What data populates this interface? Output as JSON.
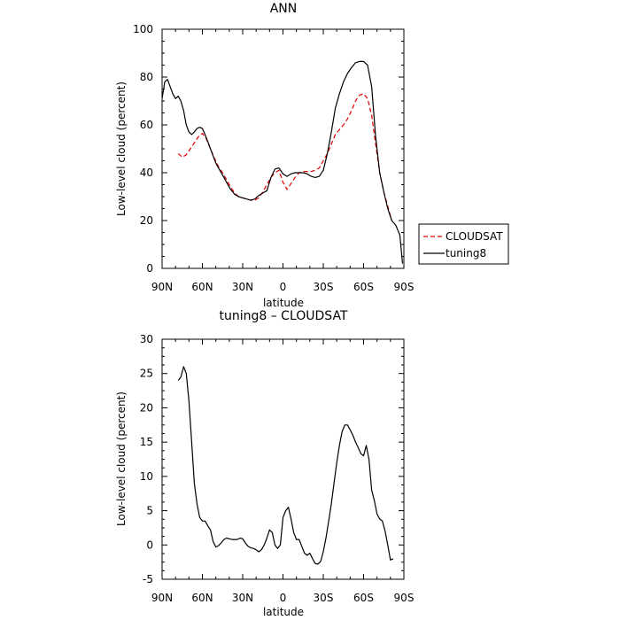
{
  "chart_data": [
    {
      "type": "line",
      "title": "ANN",
      "xlabel": "latitude",
      "ylabel": "Low-level cloud (percent)",
      "xlim": [
        90,
        -90
      ],
      "ylim": [
        0,
        100
      ],
      "xticks": [
        90,
        60,
        30,
        0,
        -30,
        -60,
        -90
      ],
      "xticklabels": [
        "90N",
        "60N",
        "30N",
        "0",
        "30S",
        "60S",
        "90S"
      ],
      "yticks": [
        0,
        20,
        40,
        60,
        80,
        100
      ],
      "yticklabels": [
        "0",
        "20",
        "40",
        "60",
        "80",
        "100"
      ],
      "legend": {
        "placement": "right",
        "entries": [
          "CLOUDSAT",
          "tuning8"
        ]
      },
      "series": [
        {
          "name": "CLOUDSAT",
          "color": "#e00000",
          "dash": "dashed",
          "x": [
            78,
            75,
            72,
            69,
            66,
            63,
            60,
            57,
            54,
            51,
            48,
            45,
            42,
            39,
            36,
            33,
            30,
            27,
            24,
            21,
            18,
            15,
            12,
            9,
            6,
            3,
            0,
            -3,
            -6,
            -9,
            -12,
            -15,
            -18,
            -21,
            -24,
            -27,
            -30,
            -33,
            -36,
            -39,
            -42,
            -45,
            -48,
            -51,
            -54,
            -57,
            -60,
            -63,
            -66,
            -69,
            -72,
            -75,
            -78,
            -81
          ],
          "y": [
            48,
            46.5,
            47.5,
            50,
            52.5,
            55,
            56.5,
            54,
            50,
            46,
            42.5,
            40,
            37,
            34,
            31.5,
            30,
            29.5,
            29,
            28.5,
            28.5,
            29.5,
            32,
            35,
            38,
            40,
            41,
            36,
            33,
            35.5,
            38,
            40,
            40.5,
            40.5,
            40.5,
            41,
            42,
            45,
            48,
            52,
            56,
            58,
            60,
            62.5,
            66,
            70,
            72.5,
            73,
            71,
            64,
            52,
            40,
            32,
            26,
            20
          ]
        },
        {
          "name": "tuning8",
          "color": "#000000",
          "dash": "solid",
          "x": [
            90,
            88,
            86,
            84,
            82,
            80,
            78,
            76,
            74,
            72,
            70,
            68,
            66,
            64,
            62,
            60,
            58,
            56,
            54,
            52,
            50,
            48,
            46,
            44,
            42,
            39,
            36,
            33,
            30,
            27,
            24,
            21,
            18,
            15,
            12,
            9,
            6,
            3,
            0,
            -3,
            -6,
            -9,
            -12,
            -15,
            -18,
            -21,
            -24,
            -27,
            -30,
            -33,
            -36,
            -39,
            -42,
            -45,
            -48,
            -51,
            -54,
            -57,
            -60,
            -63,
            -66,
            -69,
            -72,
            -75,
            -78,
            -81,
            -84,
            -87,
            -89
          ],
          "y": [
            71,
            78,
            79,
            76,
            73,
            71,
            72,
            70,
            66,
            60,
            57,
            56,
            57,
            58.5,
            59,
            58.5,
            56,
            53,
            50,
            47,
            44,
            42,
            40,
            38,
            36,
            33,
            31,
            30,
            29.5,
            29,
            28.5,
            29,
            30.5,
            31.5,
            32.5,
            38,
            41.5,
            42,
            39.5,
            38.5,
            39.5,
            40,
            40,
            40,
            39.5,
            38.5,
            38,
            38.5,
            41,
            48,
            57,
            67,
            73,
            78,
            81.5,
            84,
            86,
            86.5,
            86.5,
            85,
            76,
            55,
            40,
            32,
            25,
            20,
            18,
            14,
            2
          ]
        }
      ]
    },
    {
      "type": "line",
      "title": "tuning8 – CLOUDSAT",
      "xlabel": "latitude",
      "ylabel": "Low-level cloud (percent)",
      "xlim": [
        90,
        -90
      ],
      "ylim": [
        -5,
        30
      ],
      "xticks": [
        90,
        60,
        30,
        0,
        -30,
        -60,
        -90
      ],
      "xticklabels": [
        "90N",
        "60N",
        "30N",
        "0",
        "30S",
        "60S",
        "90S"
      ],
      "yticks": [
        -5,
        0,
        5,
        10,
        15,
        20,
        25,
        30
      ],
      "yticklabels": [
        "-5",
        "0",
        "5",
        "10",
        "15",
        "20",
        "25",
        "30"
      ],
      "series": [
        {
          "color": "#000000",
          "dash": "solid",
          "x": [
            78,
            76,
            74,
            72,
            70,
            68,
            66,
            64,
            62,
            60,
            58,
            56,
            54,
            52,
            50,
            48,
            46,
            44,
            42,
            40,
            38,
            36,
            34,
            32,
            30,
            28,
            26,
            24,
            22,
            20,
            18,
            16,
            14,
            12,
            10,
            8,
            6,
            4,
            2,
            0,
            -2,
            -4,
            -6,
            -8,
            -10,
            -12,
            -14,
            -16,
            -18,
            -20,
            -22,
            -24,
            -26,
            -28,
            -30,
            -32,
            -34,
            -36,
            -38,
            -40,
            -42,
            -44,
            -46,
            -48,
            -50,
            -52,
            -54,
            -56,
            -58,
            -60,
            -62,
            -64,
            -66,
            -68,
            -70,
            -72,
            -74,
            -76,
            -78,
            -80,
            -82
          ],
          "y": [
            24,
            24.5,
            26,
            25,
            21,
            15,
            9,
            6,
            4,
            3.5,
            3.5,
            2.8,
            2.2,
            0.5,
            -0.3,
            -0.1,
            0.3,
            0.8,
            1,
            0.9,
            0.8,
            0.8,
            0.8,
            1,
            0.9,
            0.3,
            -0.2,
            -0.4,
            -0.5,
            -0.7,
            -1,
            -0.7,
            0,
            1,
            2.2,
            1.8,
            0,
            -0.5,
            0,
            4,
            5,
            5.5,
            3.8,
            1.8,
            0.8,
            0.8,
            -0.2,
            -1.2,
            -1.5,
            -1.2,
            -2,
            -2.7,
            -2.8,
            -2.4,
            -1,
            1,
            3.5,
            6,
            9,
            12,
            14.5,
            16.5,
            17.5,
            17.5,
            16.8,
            16,
            15,
            14.2,
            13.3,
            13,
            14.5,
            12.5,
            8,
            6.5,
            4.5,
            3.8,
            3.5,
            2,
            0,
            -2.2,
            -2
          ]
        }
      ]
    }
  ]
}
